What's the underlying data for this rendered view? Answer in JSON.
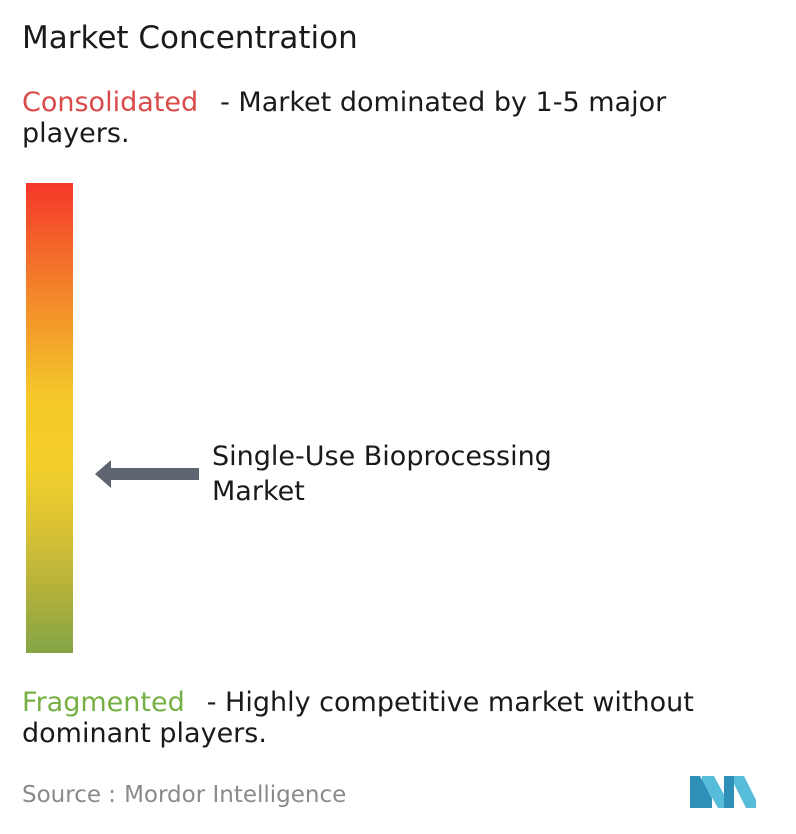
{
  "title": "Market Concentration",
  "consolidated": {
    "label": "Consolidated",
    "description": "- Market dominated by 1-5 major players.",
    "color": "#d94a48"
  },
  "fragmented": {
    "label": "Fragmented",
    "description": "- Highly competitive market without dominant players.",
    "color": "#76b044"
  },
  "chart_data": {
    "type": "gauge",
    "scale": [
      "Fragmented",
      "Consolidated"
    ],
    "marker": {
      "label": "Single-Use Bioprocessing Market",
      "level": 0.38
    },
    "gradient_colors": [
      "#f5372a",
      "#f39a2a",
      "#f5c72a",
      "#84a547"
    ]
  },
  "source": {
    "label": "Source :",
    "name": "Mordor Intelligence"
  },
  "logo": {
    "icon": "mordor-intelligence-logo-icon",
    "color": "#3fa9c9"
  }
}
